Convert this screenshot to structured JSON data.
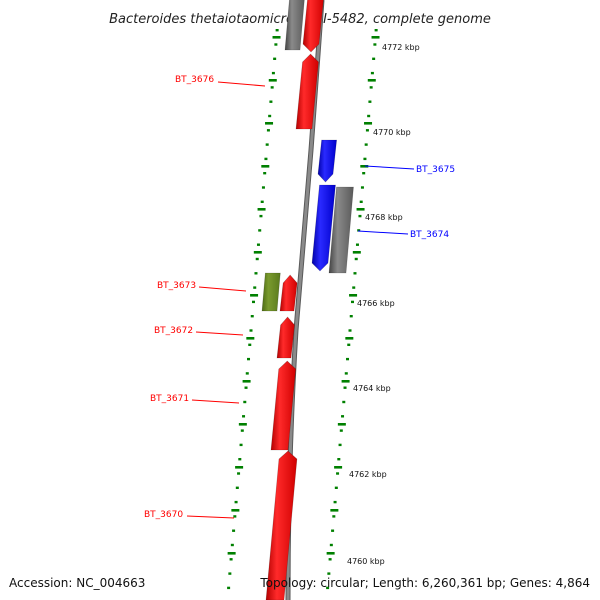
{
  "title": "Bacteroides thetaiotaomicron VPI-5482, complete genome",
  "footer": {
    "accession": "Accession: NC_004663",
    "topology": "Topology: circular; Length: 6,260,361 bp; Genes: 4,864"
  },
  "colors": {
    "plus_strand_gene": "#ff0000",
    "minus_strand_gene": "#0000ff",
    "pseudo_gene": "#666666",
    "rna_gene": "#6b8e23",
    "scale_ticks": "#008000",
    "backbone": "#8a8a8a"
  },
  "scale_labels": [
    {
      "kbp": 4772,
      "label": "4772 kbp"
    },
    {
      "kbp": 4770,
      "label": "4770 kbp"
    },
    {
      "kbp": 4768,
      "label": "4768 kbp"
    },
    {
      "kbp": 4766,
      "label": "4766 kbp"
    },
    {
      "kbp": 4764,
      "label": "4764 kbp"
    },
    {
      "kbp": 4762,
      "label": "4762 kbp"
    },
    {
      "kbp": 4760,
      "label": "4760 kbp"
    }
  ],
  "gene_labels": [
    {
      "name": "BT_3676",
      "strand": "plus"
    },
    {
      "name": "BT_3675",
      "strand": "minus"
    },
    {
      "name": "BT_3674",
      "strand": "minus"
    },
    {
      "name": "BT_3673",
      "strand": "plus"
    },
    {
      "name": "BT_3672",
      "strand": "plus"
    },
    {
      "name": "BT_3671",
      "strand": "plus"
    },
    {
      "name": "BT_3670",
      "strand": "plus"
    }
  ]
}
